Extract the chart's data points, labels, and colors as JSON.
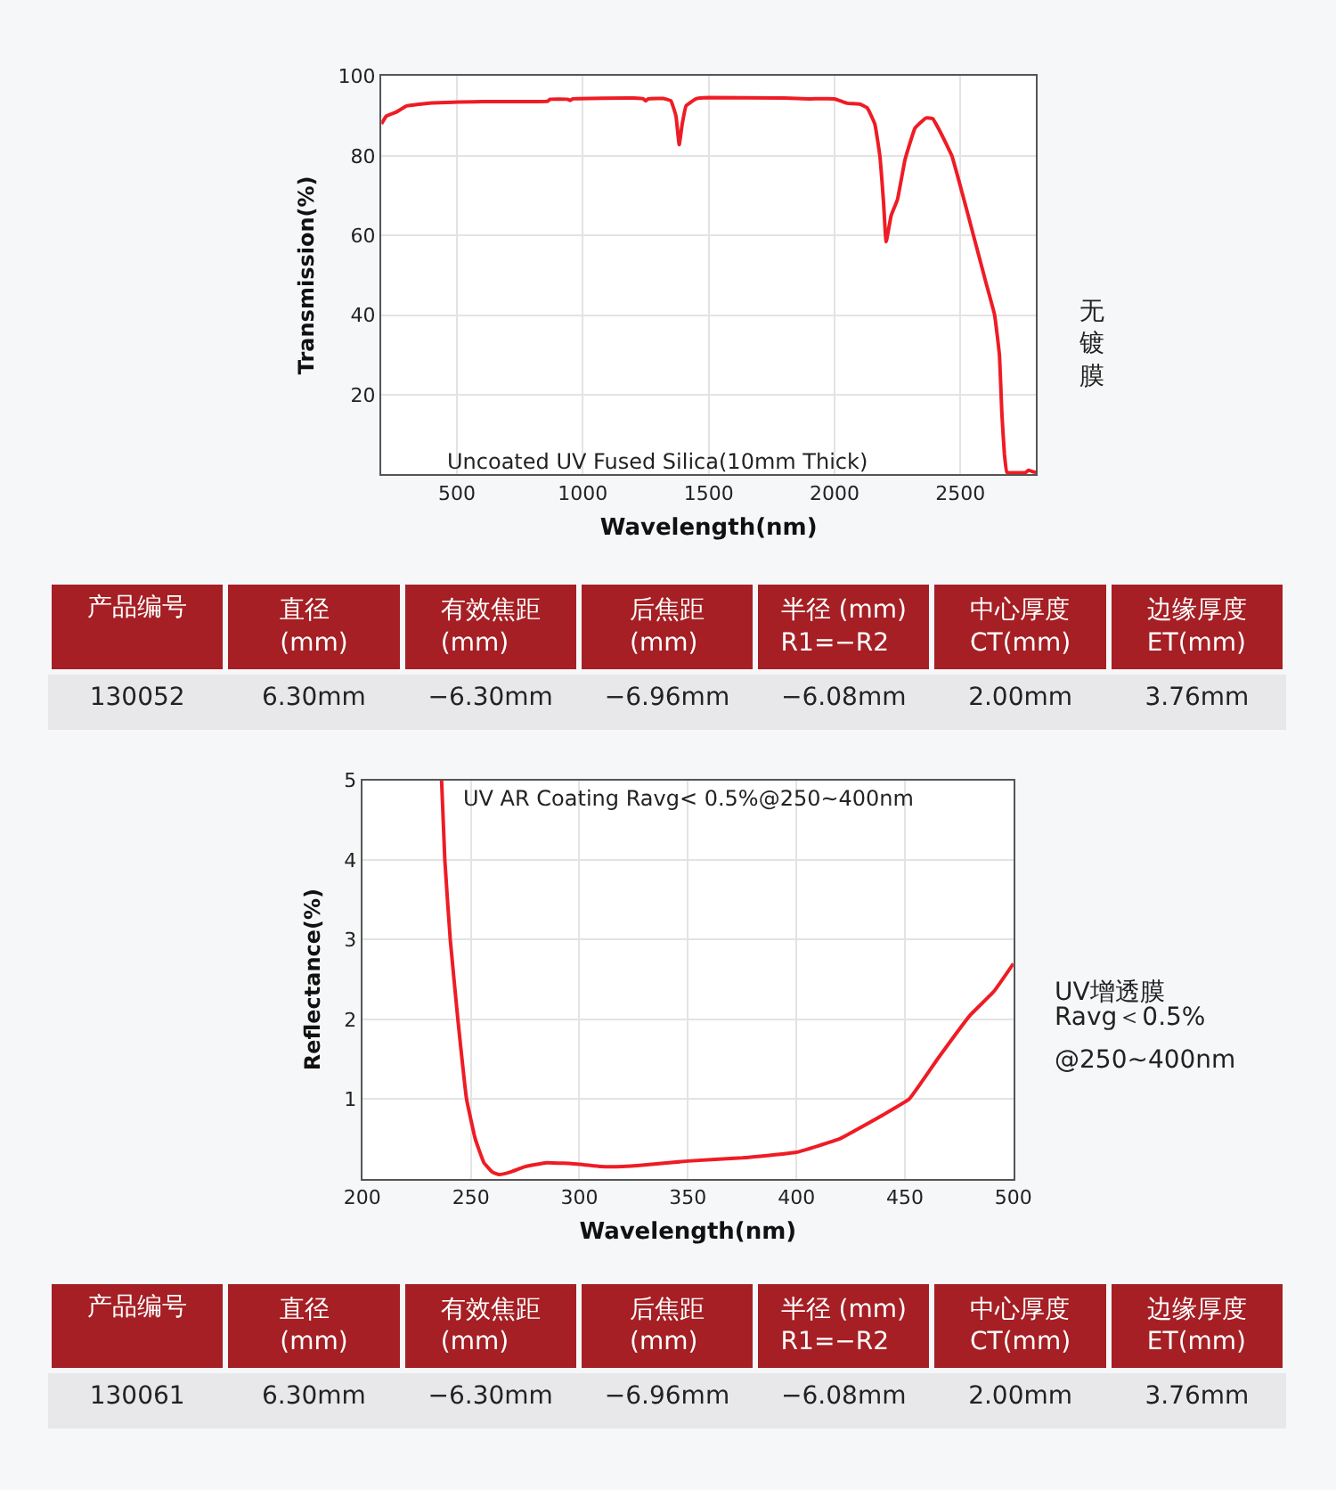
{
  "chart_data": [
    {
      "type": "line",
      "xlabel": "Wavelength(nm)",
      "ylabel": "Transmission(%)",
      "annotations": [
        "Uncoated UV Fused Silica(10mm Thick)",
        "无镀膜"
      ],
      "series": [
        {
          "color": "#ee1c25",
          "x": [
            200,
            220,
            260,
            300,
            400,
            600,
            860,
            870,
            940,
            950,
            960,
            1200,
            1240,
            1250,
            1260,
            1320,
            1350,
            1370,
            1383,
            1395,
            1410,
            1450,
            1500,
            1800,
            1900,
            2000,
            2050,
            2100,
            2130,
            2160,
            2180,
            2195,
            2205,
            2225,
            2250,
            2280,
            2320,
            2364,
            2390,
            2420,
            2466,
            2510,
            2552,
            2600,
            2636,
            2655,
            2665,
            2675,
            2685,
            2720,
            2760,
            2770,
            2790,
            2800
          ],
          "values": [
            88,
            90,
            91,
            92.5,
            93.3,
            93.6,
            93.7,
            94.2,
            94.2,
            93.9,
            94.3,
            94.5,
            94.3,
            93.8,
            94.3,
            94.4,
            93.8,
            90,
            82.8,
            88,
            92.5,
            94.3,
            94.6,
            94.5,
            94.3,
            94.3,
            93.2,
            93,
            92,
            88,
            80,
            68,
            58.4,
            65,
            69,
            79,
            87,
            89.5,
            89.3,
            86,
            80,
            70,
            60,
            48.5,
            40,
            30,
            15,
            5,
            0.5,
            0.4,
            0.5,
            1,
            0.6,
            0.5
          ]
        }
      ],
      "xlim": [
        200,
        2800
      ],
      "xticks": [
        500,
        1000,
        1500,
        2000,
        2500
      ],
      "ylim": [
        0,
        100
      ],
      "yticks": [
        20,
        40,
        60,
        80,
        100
      ],
      "grid": true,
      "line_style": "solid",
      "marker": "none"
    },
    {
      "type": "other",
      "categories": [
        "产品编号",
        "直径\n(mm)",
        "有效焦距\n(mm)",
        "后焦距\n(mm)",
        "半径 (mm)\nR1=−R2",
        "中心厚度\nCT(mm)",
        "边缘厚度\nET(mm)"
      ],
      "annotations": [
        "130052",
        "6.30mm",
        "−6.30mm",
        "−6.96mm",
        "−6.08mm",
        "2.00mm",
        "3.76mm"
      ]
    },
    {
      "type": "line",
      "xlabel": "Wavelength(nm)",
      "ylabel": "Reflectance(%)",
      "annotations": [
        "UV AR Coating Ravg< 0.5%@250~400nm",
        "UV增透膜",
        "Ravg＜0.5%",
        "@250~400nm"
      ],
      "series": [
        {
          "color": "#ee1c25",
          "x": [
            236.5,
            238,
            240.5,
            244,
            248,
            252,
            256,
            260,
            263,
            268,
            275,
            285,
            300,
            310,
            320,
            330,
            350,
            375,
            400,
            420,
            440,
            452,
            465,
            480,
            491,
            500
          ],
          "values": [
            5,
            4,
            3,
            2,
            1,
            0.5,
            0.2,
            0.08,
            0.05,
            0.08,
            0.15,
            0.2,
            0.18,
            0.15,
            0.15,
            0.17,
            0.22,
            0.26,
            0.33,
            0.5,
            0.8,
            1,
            1.5,
            2.05,
            2.35,
            2.7
          ]
        }
      ],
      "xlim": [
        200,
        500
      ],
      "xticks": [
        200,
        250,
        300,
        350,
        400,
        450,
        500
      ],
      "ylim": [
        0,
        5
      ],
      "yticks": [
        1,
        2,
        3,
        4,
        5
      ],
      "grid": true,
      "line_style": "solid",
      "marker": "none"
    },
    {
      "type": "other",
      "categories": [
        "产品编号",
        "直径\n(mm)",
        "有效焦距\n(mm)",
        "后焦距\n(mm)",
        "半径 (mm)\nR1=−R2",
        "中心厚度\nCT(mm)",
        "边缘厚度\nET(mm)"
      ],
      "annotations": [
        "130061",
        "6.30mm",
        "−6.30mm",
        "−6.96mm",
        "−6.08mm",
        "2.00mm",
        "3.76mm"
      ]
    }
  ]
}
